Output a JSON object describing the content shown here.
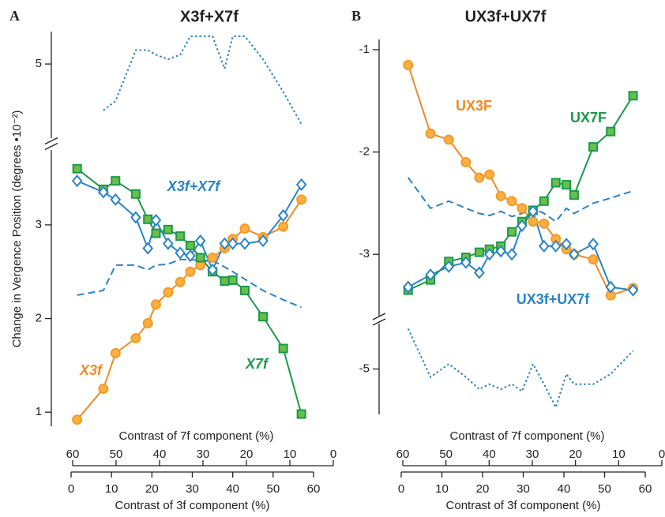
{
  "ylabel": "Change in Vergence Position (degrees •10⁻²)",
  "chart_data": [
    {
      "type": "line",
      "panel": "A",
      "title": "X3f+X7f",
      "x": [
        1.5,
        8,
        11,
        16,
        19,
        21,
        24,
        27,
        29.5,
        32,
        35,
        38,
        40,
        43,
        47.5,
        52.5,
        57
      ],
      "xlim": [
        0,
        60
      ],
      "xticks": [
        0,
        10,
        20,
        30,
        40,
        50,
        60
      ],
      "xlabel": "Contrast of 3f component (%)",
      "x2lim": [
        60,
        0
      ],
      "x2ticks": [
        60,
        50,
        40,
        30,
        20,
        10,
        0
      ],
      "x2label": "Contrast of 7f component (%)",
      "ylim": [
        0.85,
        3.8
      ],
      "yticks": [
        1,
        2,
        3
      ],
      "y2lim": [
        4.2,
        5.35
      ],
      "y2ticks": [
        5
      ],
      "series": [
        {
          "name": "X3f",
          "color": "#f08a24",
          "fill": "#fbb040",
          "marker": "circle",
          "style": "solid",
          "values": [
            0.92,
            1.25,
            1.63,
            1.79,
            1.95,
            2.15,
            2.28,
            2.39,
            2.5,
            2.57,
            2.65,
            2.75,
            2.85,
            2.96,
            2.87,
            2.98,
            3.27
          ]
        },
        {
          "name": "X7f",
          "color": "#1a9a48",
          "fill": "#6abf4b",
          "marker": "square",
          "style": "solid",
          "values": [
            3.6,
            3.38,
            3.47,
            3.33,
            3.06,
            2.91,
            2.95,
            2.88,
            2.78,
            2.65,
            2.5,
            2.4,
            2.41,
            2.3,
            2.02,
            1.68,
            0.98
          ]
        },
        {
          "name": "X3f+X7f",
          "color": "#2a84c6",
          "fill": "#ffffff",
          "marker": "diamond",
          "style": "solid",
          "values": [
            3.47,
            3.35,
            3.27,
            3.08,
            2.75,
            3.05,
            2.8,
            2.7,
            2.67,
            2.83,
            2.52,
            2.8,
            2.8,
            2.8,
            2.83,
            3.1,
            3.43
          ]
        },
        {
          "color": "#2a84c6",
          "marker": "none",
          "style": "dashed",
          "values": [
            2.25,
            2.3,
            2.57,
            2.57,
            2.52,
            2.57,
            2.58,
            2.63,
            2.63,
            2.62,
            2.62,
            2.55,
            2.5,
            2.42,
            2.3,
            2.2,
            2.12
          ]
        },
        {
          "color": "#2a84c6",
          "marker": "none",
          "style": "dotted",
          "axis": "y2",
          "values": [
            null,
            4.5,
            4.6,
            5.15,
            5.15,
            5.1,
            5.05,
            5.1,
            5.3,
            5.3,
            5.3,
            4.95,
            5.3,
            5.3,
            5.05,
            4.7,
            4.35
          ]
        }
      ]
    },
    {
      "type": "line",
      "panel": "B",
      "title": "UX3f+UX7f",
      "x": [
        1.7,
        7.2,
        11.7,
        15.9,
        19.2,
        21.7,
        24.5,
        27.2,
        29.7,
        32.4,
        35.1,
        38,
        40.6,
        42.5,
        47.2,
        51.5,
        57
      ],
      "xlim": [
        0,
        60
      ],
      "xticks": [
        0,
        10,
        20,
        30,
        40,
        50,
        60
      ],
      "xlabel": "Contrast of 3f component (%)",
      "x2lim": [
        60,
        0
      ],
      "x2ticks": [
        60,
        50,
        40,
        30,
        20,
        10,
        0
      ],
      "x2label": "Contrast of 7f component (%)",
      "ylim": [
        -3.6,
        -0.9
      ],
      "yticks": [
        -3,
        -2,
        -1
      ],
      "y2lim": [
        -5.45,
        -4.55
      ],
      "y2ticks": [
        -5
      ],
      "series": [
        {
          "name": "UX3F",
          "color": "#f08a24",
          "fill": "#fbb040",
          "marker": "circle",
          "style": "solid",
          "values": [
            -1.15,
            -1.82,
            -1.88,
            -2.1,
            -2.25,
            -2.22,
            -2.43,
            -2.48,
            -2.55,
            -2.68,
            -2.7,
            -2.85,
            -2.95,
            -3.0,
            -3.05,
            -3.4,
            -3.33
          ]
        },
        {
          "name": "UX7F",
          "color": "#1a9a48",
          "fill": "#6abf4b",
          "marker": "square",
          "style": "solid",
          "values": [
            -3.35,
            -3.25,
            -3.07,
            -3.03,
            -2.98,
            -2.95,
            -2.92,
            -2.78,
            -2.68,
            -2.57,
            -2.48,
            -2.3,
            -2.32,
            -2.42,
            -1.95,
            -1.8,
            -1.45
          ]
        },
        {
          "name": "UX3f+UX7f",
          "color": "#2a84c6",
          "fill": "#ffffff",
          "marker": "diamond",
          "style": "solid",
          "values": [
            -3.32,
            -3.2,
            -3.12,
            -3.08,
            -3.18,
            -3.0,
            -2.97,
            -3.0,
            -2.72,
            -2.58,
            -2.92,
            -2.92,
            -2.9,
            -3.0,
            -2.9,
            -3.32,
            -3.35
          ]
        },
        {
          "color": "#2a84c6",
          "marker": "none",
          "style": "dashed",
          "values": [
            -2.25,
            -2.55,
            -2.48,
            -2.55,
            -2.6,
            -2.62,
            -2.58,
            -2.63,
            -2.6,
            -2.55,
            -2.6,
            -2.68,
            -2.55,
            -2.6,
            -2.5,
            -2.45,
            -2.38
          ]
        },
        {
          "color": "#2a84c6",
          "marker": "none",
          "style": "dotted",
          "axis": "y2",
          "values": [
            -4.6,
            -5.08,
            -4.95,
            -5.08,
            -5.2,
            -5.15,
            -5.2,
            -5.15,
            -5.22,
            -4.95,
            -5.15,
            -5.38,
            -5.05,
            -5.15,
            -5.15,
            -5.05,
            -4.82
          ]
        }
      ]
    }
  ]
}
